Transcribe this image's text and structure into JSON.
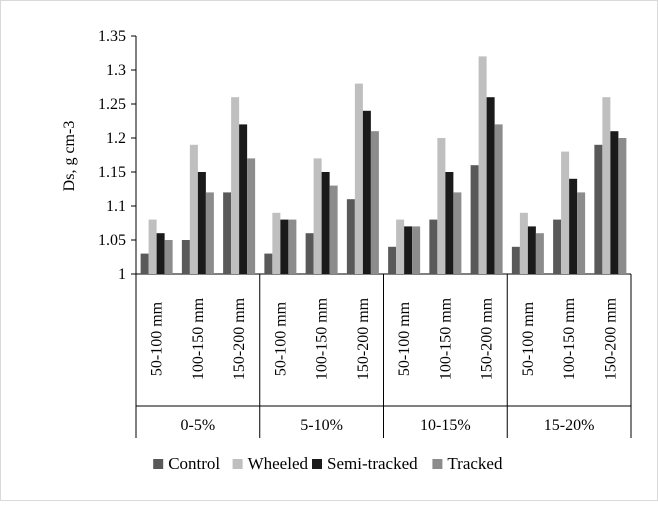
{
  "chart_data": {
    "type": "bar",
    "title": "",
    "ylabel": "Ds, g cm-3",
    "xlabel": "",
    "ylim": [
      1,
      1.35
    ],
    "yticks": [
      "1",
      "1.05",
      "1.1",
      "1.15",
      "1.2",
      "1.25",
      "1.3",
      "1.35"
    ],
    "grid": false,
    "legend_position": "bottom",
    "groups": [
      {
        "label": "0-5%",
        "categories": [
          "50-100 mm",
          "100-150 mm",
          "150-200 mm"
        ]
      },
      {
        "label": "5-10%",
        "categories": [
          "50-100 mm",
          "100-150 mm",
          "150-200 mm"
        ]
      },
      {
        "label": "10-15%",
        "categories": [
          "50-100 mm",
          "100-150 mm",
          "150-200 mm"
        ]
      },
      {
        "label": "15-20%",
        "categories": [
          "50-100 mm",
          "100-150 mm",
          "150-200 mm"
        ]
      }
    ],
    "series": [
      {
        "name": "Control",
        "color": "#595959",
        "values": [
          1.03,
          1.05,
          1.12,
          1.03,
          1.06,
          1.11,
          1.04,
          1.08,
          1.16,
          1.04,
          1.08,
          1.19
        ]
      },
      {
        "name": "Wheeled",
        "color": "#bfbfbf",
        "values": [
          1.08,
          1.19,
          1.26,
          1.09,
          1.17,
          1.28,
          1.08,
          1.2,
          1.32,
          1.09,
          1.18,
          1.26
        ]
      },
      {
        "name": "Semi-tracked",
        "color": "#1a1a1a",
        "values": [
          1.06,
          1.15,
          1.22,
          1.08,
          1.15,
          1.24,
          1.07,
          1.15,
          1.26,
          1.07,
          1.14,
          1.21
        ]
      },
      {
        "name": "Tracked",
        "color": "#8c8c8c",
        "values": [
          1.05,
          1.12,
          1.17,
          1.08,
          1.13,
          1.21,
          1.07,
          1.12,
          1.22,
          1.06,
          1.12,
          1.2
        ]
      }
    ]
  }
}
